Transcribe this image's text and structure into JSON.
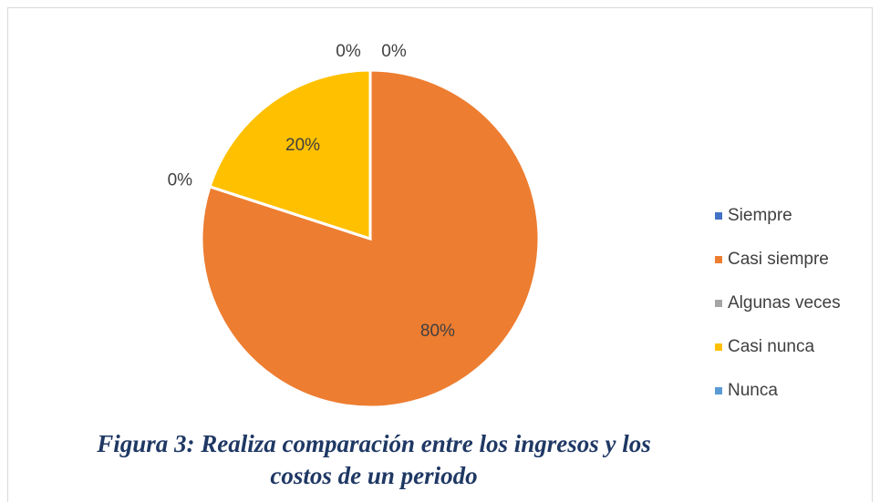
{
  "chart_data": {
    "type": "pie",
    "categories": [
      "Siempre",
      "Casi siempre",
      "Algunas veces",
      "Casi nunca",
      "Nunca"
    ],
    "values": [
      0,
      80,
      0,
      20,
      0
    ],
    "value_labels": [
      "0%",
      "80%",
      "0%",
      "20%",
      "0%"
    ],
    "colors": [
      "#4472c4",
      "#ed7d31",
      "#a5a5a5",
      "#ffc000",
      "#5b9bd5"
    ],
    "legend": "right",
    "caption": "Figura 3: Realiza comparación entre los ingresos y los costos de un periodo"
  }
}
